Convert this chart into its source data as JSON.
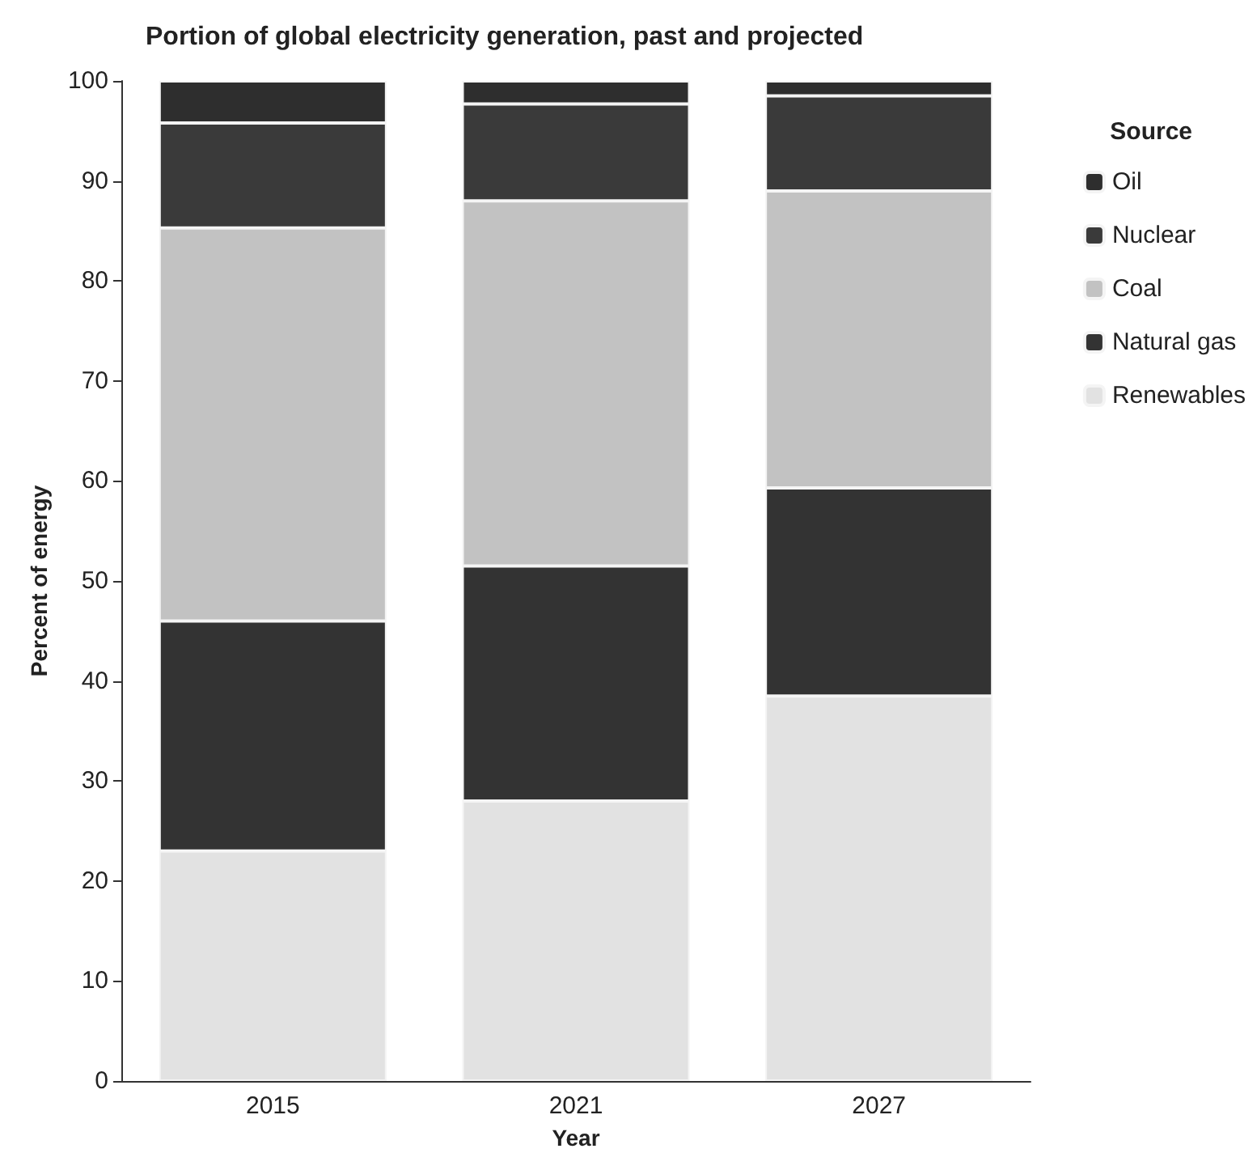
{
  "chart_data": {
    "type": "bar",
    "title": "Portion of global electricity generation, past and projected",
    "xlabel": "Year",
    "ylabel": "Percent of energy",
    "legend_title": "Source",
    "categories": [
      "2015",
      "2021",
      "2027"
    ],
    "stacked": true,
    "series": [
      {
        "name": "Renewables",
        "color": "#e2e2e2",
        "values": [
          23,
          28,
          38.5
        ]
      },
      {
        "name": "Natural gas",
        "color": "#333333",
        "values": [
          23,
          23.5,
          20.8
        ]
      },
      {
        "name": "Coal",
        "color": "#c2c2c2",
        "values": [
          39.3,
          36.5,
          29.7
        ]
      },
      {
        "name": "Nuclear",
        "color": "#3a3a3a",
        "values": [
          10.5,
          9.7,
          9.5
        ]
      },
      {
        "name": "Oil",
        "color": "#2e2e2e",
        "values": [
          4.2,
          2.3,
          1.5
        ]
      }
    ],
    "ylim": [
      0,
      100
    ],
    "yticks": [
      0,
      10,
      20,
      30,
      40,
      50,
      60,
      70,
      80,
      90,
      100
    ],
    "grid": false,
    "legend": "right"
  }
}
